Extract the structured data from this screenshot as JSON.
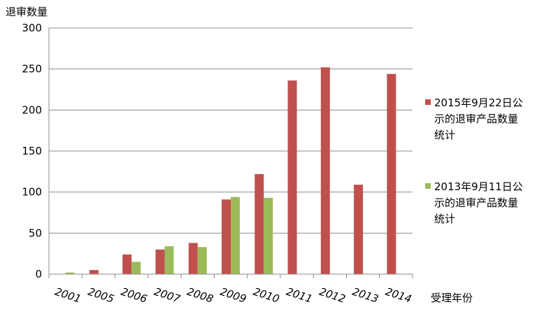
{
  "chart_data": {
    "type": "bar",
    "title": "",
    "ylabel": "退审数量",
    "xlabel": "受理年份",
    "ylim": [
      0,
      300
    ],
    "yticks": [
      0,
      50,
      100,
      150,
      200,
      250,
      300
    ],
    "grid": true,
    "legend_position": "right",
    "categories": [
      "2001",
      "2005",
      "2006",
      "2007",
      "2008",
      "2009",
      "2010",
      "2011",
      "2012",
      "2013",
      "2014"
    ],
    "series": [
      {
        "name_lines": [
          "2015年9月22日公",
          "示的退审产品数量",
          "统计"
        ],
        "color": "#C0504D",
        "values": [
          0,
          5,
          24,
          30,
          38,
          91,
          122,
          236,
          252,
          109,
          244
        ]
      },
      {
        "name_lines": [
          "2013年9月11日公",
          "示的退审产品数量",
          "统计"
        ],
        "color": "#9BBB59",
        "values": [
          2,
          0,
          15,
          34,
          33,
          94,
          93,
          0,
          0,
          0,
          0
        ]
      }
    ]
  }
}
